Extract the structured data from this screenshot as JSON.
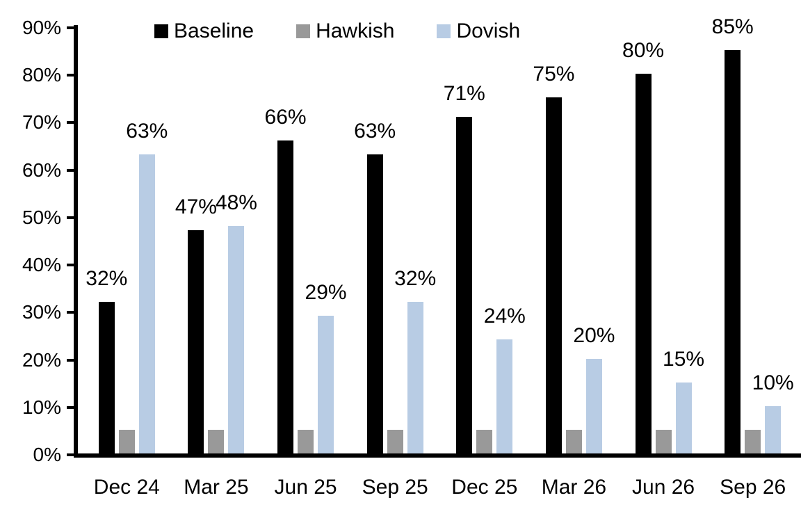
{
  "chart_data": {
    "type": "bar",
    "title": "",
    "categories": [
      "Dec 24",
      "Mar 25",
      "Jun 25",
      "Sep 25",
      "Dec 25",
      "Mar 26",
      "Jun 26",
      "Sep 26"
    ],
    "series": [
      {
        "name": "Baseline",
        "color": "#000000",
        "values": [
          32,
          47,
          66,
          63,
          71,
          75,
          80,
          85
        ],
        "data_labels": [
          "32%",
          "47%",
          "66%",
          "63%",
          "71%",
          "75%",
          "80%",
          "85%"
        ]
      },
      {
        "name": "Hawkish",
        "color": "#999999",
        "values": [
          5,
          5,
          5,
          5,
          5,
          5,
          5,
          5
        ],
        "data_labels": [
          "",
          "",
          "",
          "",
          "",
          "",
          "",
          ""
        ]
      },
      {
        "name": "Dovish",
        "color": "#B8CCE4",
        "values": [
          63,
          48,
          29,
          32,
          24,
          20,
          15,
          10
        ],
        "data_labels": [
          "63%",
          "48%",
          "29%",
          "32%",
          "24%",
          "20%",
          "15%",
          "10%"
        ]
      }
    ],
    "y_axis": {
      "tick_labels": [
        "0%",
        "10%",
        "20%",
        "30%",
        "40%",
        "50%",
        "60%",
        "70%",
        "80%",
        "90%"
      ],
      "min": 0,
      "max": 90
    },
    "xlabel": "",
    "ylabel": "",
    "legend": {
      "position": "top",
      "entries": [
        "Baseline",
        "Hawkish",
        "Dovish"
      ]
    },
    "grid": false,
    "colors": {
      "axis": "#000000",
      "text": "#000000",
      "background": "#FFFFFF"
    }
  }
}
